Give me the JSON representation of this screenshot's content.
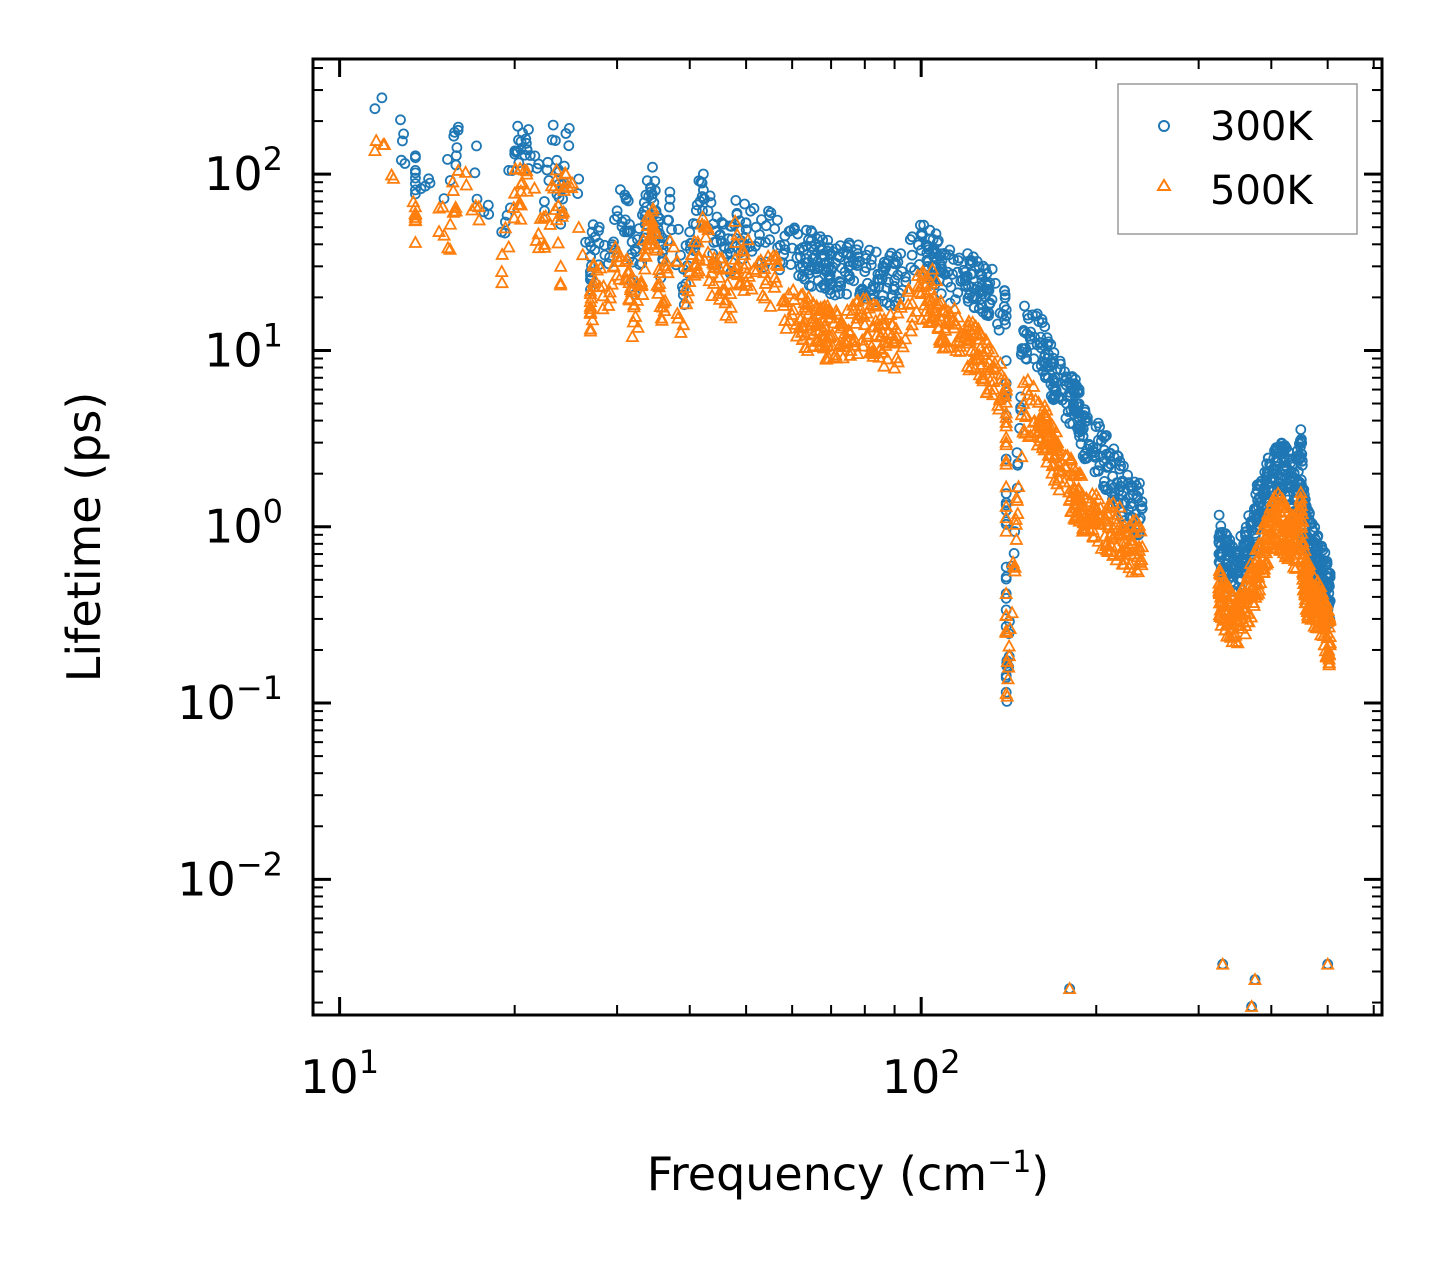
{
  "chart_data": {
    "type": "scatter",
    "xscale": "log",
    "yscale": "log",
    "xlim": [
      9,
      620
    ],
    "ylim": [
      0.0017,
      450
    ],
    "xlabel": "Frequency (cm",
    "xlabel_sup": "−1",
    "xlabel_end": ")",
    "ylabel": "Lifetime (ps)",
    "x_ticks": [
      {
        "value": 10,
        "base": "10",
        "exp": "1"
      },
      {
        "value": 100,
        "base": "10",
        "exp": "2"
      }
    ],
    "y_ticks": [
      {
        "value": 0.01,
        "base": "10",
        "exp": "−2"
      },
      {
        "value": 0.1,
        "base": "10",
        "exp": "−1"
      },
      {
        "value": 1,
        "base": "10",
        "exp": "0"
      },
      {
        "value": 10,
        "base": "10",
        "exp": "1"
      },
      {
        "value": 100,
        "base": "10",
        "exp": "2"
      }
    ],
    "legend_position": "top-right",
    "grid": false,
    "series": [
      {
        "name": "300K",
        "marker": "circle",
        "color": "#1f77b4",
        "points": [
          [
            11.5,
            235
          ],
          [
            13.5,
            105
          ],
          [
            13.5,
            95
          ],
          [
            15.5,
            92
          ],
          [
            16,
            185
          ],
          [
            19,
            47
          ],
          [
            20,
            130
          ],
          [
            20.5,
            138
          ],
          [
            21,
            138
          ],
          [
            22.5,
            70
          ],
          [
            23.5,
            155
          ],
          [
            24,
            52
          ],
          [
            24.5,
            170
          ],
          [
            27,
            34
          ],
          [
            27,
            28
          ],
          [
            27.5,
            44
          ],
          [
            29,
            31
          ],
          [
            30,
            62
          ],
          [
            31,
            55
          ],
          [
            31.5,
            47
          ],
          [
            32,
            25
          ],
          [
            33,
            40
          ],
          [
            33.5,
            58
          ],
          [
            34,
            75
          ],
          [
            34.5,
            77
          ],
          [
            35,
            62
          ],
          [
            35.5,
            40
          ],
          [
            36,
            32
          ],
          [
            37,
            72
          ],
          [
            39,
            22
          ],
          [
            40,
            47
          ],
          [
            41,
            52
          ],
          [
            42,
            89
          ],
          [
            43,
            62
          ],
          [
            44,
            41
          ],
          [
            45,
            45
          ],
          [
            46,
            38
          ],
          [
            47,
            36
          ],
          [
            48,
            71
          ],
          [
            49,
            42
          ],
          [
            50,
            53
          ],
          [
            52,
            50
          ],
          [
            54,
            41
          ],
          [
            56,
            49
          ],
          [
            58,
            35
          ],
          [
            60,
            38
          ],
          [
            62,
            34
          ],
          [
            65,
            33
          ],
          [
            68,
            31
          ],
          [
            70,
            29
          ],
          [
            75,
            30
          ],
          [
            80,
            28
          ],
          [
            85,
            27
          ],
          [
            90,
            25
          ],
          [
            100,
            37
          ],
          [
            105,
            34
          ],
          [
            110,
            27
          ],
          [
            120,
            26
          ],
          [
            125,
            23
          ],
          [
            130,
            22
          ],
          [
            140,
            17
          ],
          [
            150,
            13
          ],
          [
            160,
            11
          ],
          [
            165,
            9
          ],
          [
            170,
            7
          ],
          [
            180,
            5.5
          ],
          [
            185,
            5
          ],
          [
            190,
            3.6
          ],
          [
            200,
            2.8
          ],
          [
            210,
            2.2
          ],
          [
            220,
            1.7
          ],
          [
            230,
            1.3
          ],
          [
            240,
            1.27
          ],
          [
            140,
            0.115
          ],
          [
            180,
            0.0024
          ],
          [
            330,
            0.0033
          ],
          [
            375,
            0.0027
          ],
          [
            370,
            0.0019
          ],
          [
            500,
            0.0033
          ],
          [
            325,
            0.82
          ],
          [
            330,
            0.7
          ],
          [
            340,
            0.6
          ],
          [
            350,
            0.55
          ],
          [
            360,
            0.7
          ],
          [
            370,
            0.95
          ],
          [
            380,
            1.3
          ],
          [
            390,
            1.6
          ],
          [
            400,
            1.8
          ],
          [
            410,
            2.0
          ],
          [
            420,
            2.1
          ],
          [
            430,
            1.9
          ],
          [
            440,
            1.6
          ],
          [
            450,
            2.6
          ],
          [
            455,
            1.1
          ],
          [
            460,
            0.9
          ],
          [
            470,
            0.8
          ],
          [
            480,
            0.7
          ],
          [
            490,
            0.55
          ],
          [
            500,
            0.45
          ],
          [
            505,
            0.38
          ]
        ]
      },
      {
        "name": "500K",
        "marker": "triangle",
        "color": "#ff7f0e",
        "points": [
          [
            11.5,
            136
          ],
          [
            13.5,
            60
          ],
          [
            13.5,
            55
          ],
          [
            15.5,
            52
          ],
          [
            16,
            105
          ],
          [
            19,
            28
          ],
          [
            20,
            78
          ],
          [
            20.5,
            80
          ],
          [
            21,
            80
          ],
          [
            22.5,
            40
          ],
          [
            23.5,
            92
          ],
          [
            24,
            30
          ],
          [
            24.5,
            100
          ],
          [
            27,
            21
          ],
          [
            27,
            16.5
          ],
          [
            27.5,
            25
          ],
          [
            29,
            18
          ],
          [
            30,
            36
          ],
          [
            31,
            32
          ],
          [
            31.5,
            28
          ],
          [
            32,
            14.5
          ],
          [
            33,
            24
          ],
          [
            33.5,
            35
          ],
          [
            34,
            43
          ],
          [
            34.5,
            46
          ],
          [
            35,
            37
          ],
          [
            35.5,
            24
          ],
          [
            36,
            19
          ],
          [
            37,
            42
          ],
          [
            39,
            14
          ],
          [
            40,
            28
          ],
          [
            41,
            31
          ],
          [
            42,
            52
          ],
          [
            43,
            36
          ],
          [
            44,
            24
          ],
          [
            45,
            26
          ],
          [
            46,
            22
          ],
          [
            47,
            21
          ],
          [
            48,
            41
          ],
          [
            49,
            24
          ],
          [
            50,
            31
          ],
          [
            52,
            28
          ],
          [
            54,
            24
          ],
          [
            56,
            26
          ],
          [
            58,
            18
          ],
          [
            60,
            16
          ],
          [
            62,
            15
          ],
          [
            65,
            14
          ],
          [
            68,
            13
          ],
          [
            70,
            12
          ],
          [
            75,
            13
          ],
          [
            80,
            14
          ],
          [
            85,
            12
          ],
          [
            90,
            11
          ],
          [
            100,
            21
          ],
          [
            105,
            20
          ],
          [
            110,
            13
          ],
          [
            120,
            11
          ],
          [
            125,
            9.5
          ],
          [
            130,
            8
          ],
          [
            140,
            6
          ],
          [
            150,
            5
          ],
          [
            160,
            4
          ],
          [
            165,
            3.2
          ],
          [
            170,
            2.5
          ],
          [
            180,
            1.8
          ],
          [
            185,
            1.5
          ],
          [
            190,
            1.3
          ],
          [
            200,
            1.1
          ],
          [
            210,
            1.0
          ],
          [
            220,
            0.9
          ],
          [
            230,
            0.8
          ],
          [
            240,
            0.77
          ],
          [
            140,
            0.113
          ],
          [
            180,
            0.0024
          ],
          [
            330,
            0.0033
          ],
          [
            375,
            0.0027
          ],
          [
            370,
            0.0019
          ],
          [
            500,
            0.0033
          ],
          [
            325,
            0.45
          ],
          [
            330,
            0.36
          ],
          [
            340,
            0.32
          ],
          [
            350,
            0.3
          ],
          [
            360,
            0.33
          ],
          [
            370,
            0.45
          ],
          [
            380,
            0.6
          ],
          [
            390,
            0.8
          ],
          [
            400,
            0.95
          ],
          [
            410,
            1.1
          ],
          [
            420,
            1.0
          ],
          [
            430,
            0.85
          ],
          [
            440,
            0.8
          ],
          [
            450,
            1.25
          ],
          [
            455,
            0.55
          ],
          [
            460,
            0.45
          ],
          [
            470,
            0.4
          ],
          [
            480,
            0.35
          ],
          [
            490,
            0.3
          ],
          [
            500,
            0.25
          ],
          [
            505,
            0.22
          ]
        ]
      }
    ]
  }
}
